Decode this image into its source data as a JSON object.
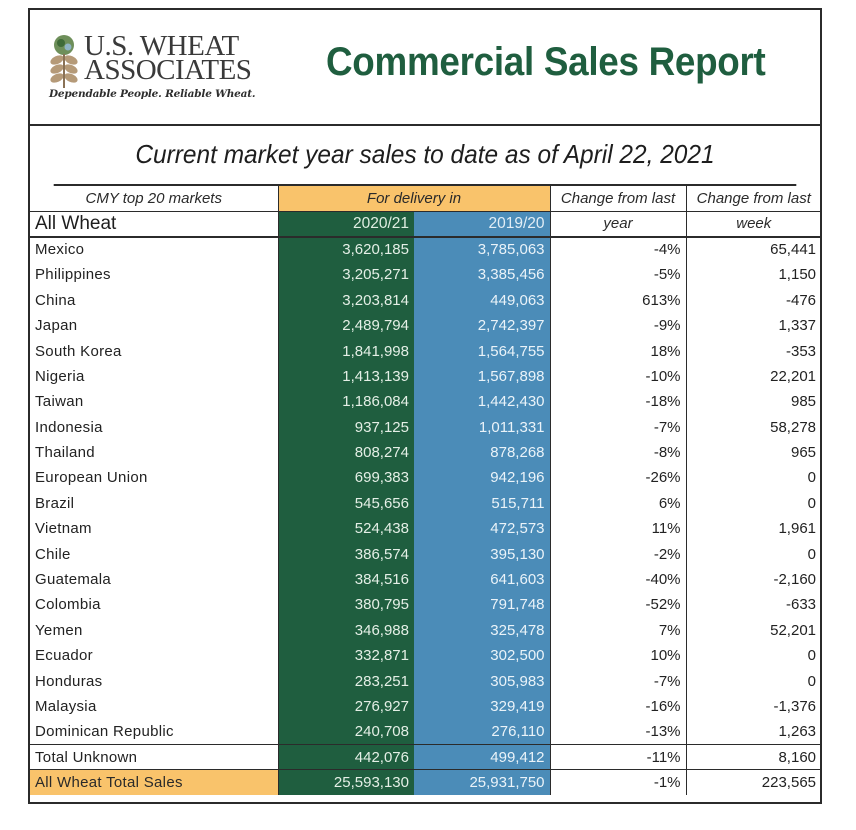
{
  "header": {
    "logo": {
      "line1": "U.S. WHEAT",
      "line2": "ASSOCIATES",
      "tagline": "Dependable People. Reliable Wheat.",
      "icon": "wheat-globe-icon"
    },
    "title": "Commercial Sales Report"
  },
  "subtitle": "Current market year sales to date as of April 22, 2021",
  "colors": {
    "title_green": "#1f5e3f",
    "current_year_green": "#1f5e3f",
    "prior_year_blue": "#4b8cb8",
    "highlight_orange": "#f9c36b"
  },
  "table": {
    "header": {
      "markets_label": "CMY top 20 markets",
      "delivery_label": "For delivery in",
      "change_year_line1": "Change from last",
      "change_year_line2": "year",
      "change_week_line1": "Change from last",
      "change_week_line2": "week",
      "commodity": "All Wheat",
      "year_current": "2020/21",
      "year_prior": "2019/20"
    },
    "rows": [
      {
        "market": "Mexico",
        "y2020_21": "3,620,185",
        "y2019_20": "3,785,063",
        "change_year": "-4%",
        "change_week": "65,441"
      },
      {
        "market": "Philippines",
        "y2020_21": "3,205,271",
        "y2019_20": "3,385,456",
        "change_year": "-5%",
        "change_week": "1,150"
      },
      {
        "market": "China",
        "y2020_21": "3,203,814",
        "y2019_20": "449,063",
        "change_year": "613%",
        "change_week": "-476"
      },
      {
        "market": "Japan",
        "y2020_21": "2,489,794",
        "y2019_20": "2,742,397",
        "change_year": "-9%",
        "change_week": "1,337"
      },
      {
        "market": "South Korea",
        "y2020_21": "1,841,998",
        "y2019_20": "1,564,755",
        "change_year": "18%",
        "change_week": "-353"
      },
      {
        "market": "Nigeria",
        "y2020_21": "1,413,139",
        "y2019_20": "1,567,898",
        "change_year": "-10%",
        "change_week": "22,201"
      },
      {
        "market": "Taiwan",
        "y2020_21": "1,186,084",
        "y2019_20": "1,442,430",
        "change_year": "-18%",
        "change_week": "985"
      },
      {
        "market": "Indonesia",
        "y2020_21": "937,125",
        "y2019_20": "1,011,331",
        "change_year": "-7%",
        "change_week": "58,278"
      },
      {
        "market": "Thailand",
        "y2020_21": "808,274",
        "y2019_20": "878,268",
        "change_year": "-8%",
        "change_week": "965"
      },
      {
        "market": "European Union",
        "y2020_21": "699,383",
        "y2019_20": "942,196",
        "change_year": "-26%",
        "change_week": "0"
      },
      {
        "market": "Brazil",
        "y2020_21": "545,656",
        "y2019_20": "515,711",
        "change_year": "6%",
        "change_week": "0"
      },
      {
        "market": "Vietnam",
        "y2020_21": "524,438",
        "y2019_20": "472,573",
        "change_year": "11%",
        "change_week": "1,961"
      },
      {
        "market": "Chile",
        "y2020_21": "386,574",
        "y2019_20": "395,130",
        "change_year": "-2%",
        "change_week": "0"
      },
      {
        "market": "Guatemala",
        "y2020_21": "384,516",
        "y2019_20": "641,603",
        "change_year": "-40%",
        "change_week": "-2,160"
      },
      {
        "market": "Colombia",
        "y2020_21": "380,795",
        "y2019_20": "791,748",
        "change_year": "-52%",
        "change_week": "-633"
      },
      {
        "market": "Yemen",
        "y2020_21": "346,988",
        "y2019_20": "325,478",
        "change_year": "7%",
        "change_week": "52,201"
      },
      {
        "market": "Ecuador",
        "y2020_21": "332,871",
        "y2019_20": "302,500",
        "change_year": "10%",
        "change_week": "0"
      },
      {
        "market": "Honduras",
        "y2020_21": "283,251",
        "y2019_20": "305,983",
        "change_year": "-7%",
        "change_week": "0"
      },
      {
        "market": "Malaysia",
        "y2020_21": "276,927",
        "y2019_20": "329,419",
        "change_year": "-16%",
        "change_week": "-1,376"
      },
      {
        "market": "Dominican Republic",
        "y2020_21": "240,708",
        "y2019_20": "276,110",
        "change_year": "-13%",
        "change_week": "1,263"
      }
    ],
    "total_unknown": {
      "market": "Total Unknown",
      "y2020_21": "442,076",
      "y2019_20": "499,412",
      "change_year": "-11%",
      "change_week": "8,160"
    },
    "total_sales": {
      "market": "All Wheat Total Sales",
      "y2020_21": "25,593,130",
      "y2019_20": "25,931,750",
      "change_year": "-1%",
      "change_week": "223,565"
    }
  }
}
